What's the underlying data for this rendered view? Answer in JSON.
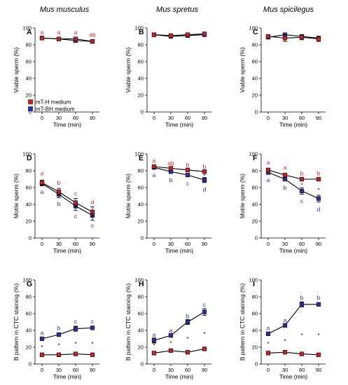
{
  "colors": {
    "mT-H medium": "#c8232a",
    "mT-BH medium": "#2c2fa6"
  },
  "column_titles": [
    "Mus musculus",
    "Mus spretus",
    "Mus spicilegus"
  ],
  "legend": [
    "mT-H medium",
    "mT-BH medium"
  ],
  "chart_data": [
    {
      "type": "line",
      "panel": "A",
      "ylabel": "Viable sperm (%)",
      "xlabel": "Time (min)",
      "categories": [
        "0",
        "30",
        "60",
        "90"
      ],
      "ylim": [
        0,
        100
      ],
      "yticks": [
        0,
        20,
        40,
        60,
        80,
        100
      ],
      "series": [
        {
          "name": "mT-H medium",
          "values": [
            88,
            87,
            87,
            84
          ],
          "err": [
            1.5,
            1.5,
            1.5,
            1.5
          ]
        },
        {
          "name": "mT-BH medium",
          "values": [
            88,
            87,
            85,
            84
          ],
          "err": [
            1.5,
            1.5,
            2,
            1.5
          ]
        }
      ],
      "letters": [
        {
          "x": 0,
          "y": 95,
          "text": "a",
          "series": "mT-H medium"
        },
        {
          "x": 1,
          "y": 95,
          "text": "a",
          "series": "mT-H medium"
        },
        {
          "x": 2,
          "y": 95,
          "text": "a",
          "series": "mT-H medium"
        },
        {
          "x": 3,
          "y": 92,
          "text": "ab",
          "series": "mT-H medium"
        }
      ],
      "stars": []
    },
    {
      "type": "line",
      "panel": "B",
      "ylabel": "Viable sperm (%)",
      "xlabel": "Time (min)",
      "categories": [
        "0",
        "30",
        "60",
        "90"
      ],
      "ylim": [
        0,
        100
      ],
      "yticks": [
        0,
        20,
        40,
        60,
        80,
        100
      ],
      "series": [
        {
          "name": "mT-H medium",
          "values": [
            92,
            91,
            92,
            93
          ],
          "err": [
            1.5,
            1.5,
            1.5,
            1.5
          ]
        },
        {
          "name": "mT-BH medium",
          "values": [
            92,
            90,
            91,
            92
          ],
          "err": [
            1.5,
            1.5,
            1.5,
            1.5
          ]
        }
      ],
      "letters": [],
      "stars": []
    },
    {
      "type": "line",
      "panel": "C",
      "ylabel": "Viable sperm (%)",
      "xlabel": "Time (min)",
      "categories": [
        "0",
        "30",
        "60",
        "90"
      ],
      "ylim": [
        0,
        100
      ],
      "yticks": [
        0,
        20,
        40,
        60,
        80,
        100
      ],
      "series": [
        {
          "name": "mT-H medium",
          "values": [
            90,
            88,
            89,
            87
          ],
          "err": [
            2,
            4,
            3,
            3
          ]
        },
        {
          "name": "mT-BH medium",
          "values": [
            89,
            92,
            90,
            88
          ],
          "err": [
            2,
            2,
            2,
            2
          ]
        }
      ],
      "letters": [],
      "stars": []
    },
    {
      "type": "line",
      "panel": "D",
      "ylabel": "Motile sperm (%)",
      "xlabel": "Time (min)",
      "categories": [
        "0",
        "30",
        "60",
        "90"
      ],
      "ylim": [
        0,
        100
      ],
      "yticks": [
        0,
        20,
        40,
        60,
        80,
        100
      ],
      "series": [
        {
          "name": "mT-H medium",
          "values": [
            66,
            55,
            42,
            31
          ],
          "err": [
            3,
            4,
            5,
            6
          ]
        },
        {
          "name": "mT-BH medium",
          "values": [
            65,
            52,
            38,
            27
          ],
          "err": [
            3,
            4,
            5,
            6
          ]
        }
      ],
      "letters": [
        {
          "x": 0,
          "y": 77,
          "text": "a",
          "series": "mT-H medium"
        },
        {
          "x": 1,
          "y": 66,
          "text": "b",
          "series": "mT-H medium"
        },
        {
          "x": 2,
          "y": 53,
          "text": "c",
          "series": "mT-H medium"
        },
        {
          "x": 3,
          "y": 43,
          "text": "d",
          "series": "mT-H medium"
        },
        {
          "x": 0,
          "y": 55,
          "text": "a",
          "series": "mT-BH medium"
        },
        {
          "x": 1,
          "y": 41,
          "text": "b",
          "series": "mT-BH medium"
        },
        {
          "x": 2,
          "y": 26,
          "text": "c",
          "series": "mT-BH medium"
        },
        {
          "x": 3,
          "y": 15,
          "text": "c",
          "series": "mT-BH medium"
        }
      ],
      "stars": []
    },
    {
      "type": "line",
      "panel": "E",
      "ylabel": "Motile sperm (%)",
      "xlabel": "Time (min)",
      "categories": [
        "0",
        "30",
        "60",
        "90"
      ],
      "ylim": [
        0,
        100
      ],
      "yticks": [
        0,
        20,
        40,
        60,
        80,
        100
      ],
      "series": [
        {
          "name": "mT-H medium",
          "values": [
            85,
            83,
            81,
            79
          ],
          "err": [
            1.5,
            1.5,
            1.5,
            1.5
          ]
        },
        {
          "name": "mT-BH medium",
          "values": [
            84,
            79,
            75,
            69
          ],
          "err": [
            2,
            2,
            2,
            3
          ]
        }
      ],
      "letters": [
        {
          "x": 0,
          "y": 92,
          "text": "a",
          "series": "mT-H medium"
        },
        {
          "x": 1,
          "y": 89,
          "text": "ab",
          "series": "mT-H medium"
        },
        {
          "x": 2,
          "y": 87,
          "text": "b",
          "series": "mT-H medium"
        },
        {
          "x": 3,
          "y": 85,
          "text": "b",
          "series": "mT-H medium"
        },
        {
          "x": 0,
          "y": 75,
          "text": "a",
          "series": "mT-BH medium"
        },
        {
          "x": 1,
          "y": 69,
          "text": "b",
          "series": "mT-BH medium"
        },
        {
          "x": 2,
          "y": 65,
          "text": "c",
          "series": "mT-BH medium"
        },
        {
          "x": 3,
          "y": 58,
          "text": "d",
          "series": "mT-BH medium"
        }
      ],
      "stars": [
        {
          "x": 3,
          "y": 74,
          "text": "*"
        }
      ]
    },
    {
      "type": "line",
      "panel": "F",
      "ylabel": "Motile sperm (%)",
      "xlabel": "Time (min)",
      "categories": [
        "0",
        "30",
        "60",
        "90"
      ],
      "ylim": [
        0,
        100
      ],
      "yticks": [
        0,
        20,
        40,
        60,
        80,
        100
      ],
      "series": [
        {
          "name": "mT-H medium",
          "values": [
            81,
            75,
            70,
            70
          ],
          "err": [
            2,
            2,
            2,
            1.5
          ]
        },
        {
          "name": "mT-BH medium",
          "values": [
            78,
            70,
            56,
            47
          ],
          "err": [
            2,
            2,
            4,
            4
          ]
        }
      ],
      "letters": [
        {
          "x": 0,
          "y": 90,
          "text": "a",
          "series": "mT-H medium"
        },
        {
          "x": 1,
          "y": 84,
          "text": "a",
          "series": "mT-H medium"
        },
        {
          "x": 2,
          "y": 77,
          "text": "b",
          "series": "mT-H medium"
        },
        {
          "x": 3,
          "y": 77,
          "text": "b",
          "series": "mT-H medium"
        },
        {
          "x": 0,
          "y": 69,
          "text": "a",
          "series": "mT-BH medium"
        },
        {
          "x": 1,
          "y": 60,
          "text": "b",
          "series": "mT-BH medium"
        },
        {
          "x": 2,
          "y": 44,
          "text": "c",
          "series": "mT-BH medium"
        },
        {
          "x": 3,
          "y": 34,
          "text": "d",
          "series": "mT-BH medium"
        }
      ],
      "stars": [
        {
          "x": 2,
          "y": 63,
          "text": "*"
        },
        {
          "x": 3,
          "y": 57,
          "text": "*"
        }
      ]
    },
    {
      "type": "line",
      "panel": "G",
      "ylabel": "B pattern in CTC staining (%)",
      "xlabel": "Time (min)",
      "categories": [
        "0",
        "30",
        "60",
        "90"
      ],
      "ylim": [
        0,
        100
      ],
      "yticks": [
        0,
        20,
        40,
        60,
        80,
        100
      ],
      "series": [
        {
          "name": "mT-H medium",
          "values": [
            11,
            11,
            12,
            11
          ],
          "err": [
            1,
            1,
            1,
            1
          ]
        },
        {
          "name": "mT-BH medium",
          "values": [
            30,
            35,
            42,
            43
          ],
          "err": [
            2,
            2,
            3,
            2
          ]
        }
      ],
      "letters": [
        {
          "x": 0,
          "y": 37,
          "text": "a",
          "series": "mT-BH medium"
        },
        {
          "x": 1,
          "y": 43,
          "text": "b",
          "series": "mT-BH medium"
        },
        {
          "x": 2,
          "y": 51,
          "text": "c",
          "series": "mT-BH medium"
        },
        {
          "x": 3,
          "y": 51,
          "text": "c",
          "series": "mT-BH medium"
        }
      ],
      "stars": [
        {
          "x": 0,
          "y": 20,
          "text": "*"
        },
        {
          "x": 1,
          "y": 22,
          "text": "*"
        },
        {
          "x": 2,
          "y": 24,
          "text": "*"
        },
        {
          "x": 3,
          "y": 24,
          "text": "*"
        }
      ]
    },
    {
      "type": "line",
      "panel": "H",
      "ylabel": "B pattern in CTC staining (%)",
      "xlabel": "Time (min)",
      "categories": [
        "0",
        "30",
        "60",
        "90"
      ],
      "ylim": [
        0,
        100
      ],
      "yticks": [
        0,
        20,
        40,
        60,
        80,
        100
      ],
      "series": [
        {
          "name": "mT-H medium",
          "values": [
            13,
            16,
            14,
            18
          ],
          "err": [
            1.5,
            1.5,
            1.5,
            2
          ]
        },
        {
          "name": "mT-BH medium",
          "values": [
            28,
            34,
            50,
            62
          ],
          "err": [
            3,
            2,
            3,
            4
          ]
        }
      ],
      "letters": [
        {
          "x": 0,
          "y": 35,
          "text": "a",
          "series": "mT-BH medium"
        },
        {
          "x": 1,
          "y": 40,
          "text": "a",
          "series": "mT-BH medium"
        },
        {
          "x": 2,
          "y": 57,
          "text": "b",
          "series": "mT-BH medium"
        },
        {
          "x": 3,
          "y": 71,
          "text": "c",
          "series": "mT-BH medium"
        }
      ],
      "stars": [
        {
          "x": 0,
          "y": 22,
          "text": "*"
        },
        {
          "x": 1,
          "y": 25,
          "text": "*"
        },
        {
          "x": 2,
          "y": 30,
          "text": "*"
        },
        {
          "x": 3,
          "y": 36,
          "text": "*"
        }
      ]
    },
    {
      "type": "line",
      "panel": "I",
      "ylabel": "B pattern in CTC staining (%)",
      "xlabel": "Time (min)",
      "categories": [
        "0",
        "30",
        "60",
        "90"
      ],
      "ylim": [
        0,
        100
      ],
      "yticks": [
        0,
        20,
        40,
        60,
        80,
        100
      ],
      "series": [
        {
          "name": "mT-H medium",
          "values": [
            13,
            14,
            12,
            11
          ],
          "err": [
            1,
            1,
            1,
            1
          ]
        },
        {
          "name": "mT-BH medium",
          "values": [
            36,
            46,
            71,
            71
          ],
          "err": [
            2,
            2,
            3,
            2
          ]
        }
      ],
      "letters": [
        {
          "x": 0,
          "y": 43,
          "text": "a",
          "series": "mT-BH medium"
        },
        {
          "x": 1,
          "y": 52,
          "text": "a",
          "series": "mT-BH medium"
        },
        {
          "x": 2,
          "y": 79,
          "text": "b",
          "series": "mT-BH medium"
        },
        {
          "x": 3,
          "y": 79,
          "text": "b",
          "series": "mT-BH medium"
        }
      ],
      "stars": [
        {
          "x": 0,
          "y": 24,
          "text": "*"
        },
        {
          "x": 1,
          "y": 27,
          "text": "*"
        },
        {
          "x": 2,
          "y": 34,
          "text": "*"
        },
        {
          "x": 3,
          "y": 34,
          "text": "*"
        }
      ]
    }
  ]
}
